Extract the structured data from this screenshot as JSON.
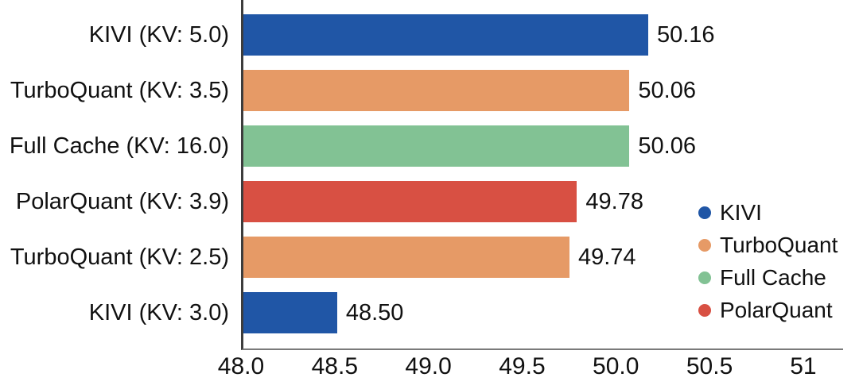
{
  "chart_data": {
    "type": "bar",
    "orientation": "horizontal",
    "title": "",
    "xlabel": "",
    "ylabel": "",
    "grid": false,
    "xlim": [
      48.0,
      51.2
    ],
    "categories": [
      "KIVI (KV: 5.0)",
      "TurboQuant (KV: 3.5)",
      "Full Cache (KV: 16.0)",
      "PolarQuant (KV: 3.9)",
      "TurboQuant (KV: 2.5)",
      "KIVI (KV: 3.0)"
    ],
    "values": [
      50.16,
      50.06,
      50.06,
      49.78,
      49.74,
      48.5
    ],
    "value_labels": [
      "50.16",
      "50.06",
      "50.06",
      "49.78",
      "49.74",
      "48.50"
    ],
    "bar_series": [
      "KIVI",
      "TurboQuant",
      "Full Cache",
      "PolarQuant",
      "TurboQuant",
      "KIVI"
    ],
    "x_ticks": [
      48.0,
      48.5,
      49.0,
      49.5,
      50.0,
      50.5,
      51.0
    ],
    "x_tick_labels": [
      "48.0",
      "48.5",
      "49.0",
      "49.5",
      "50.0",
      "50.5",
      "51"
    ],
    "legend_position": "right-middle",
    "legend": [
      {
        "label": "KIVI",
        "color": "#2056A6"
      },
      {
        "label": "TurboQuant",
        "color": "#E69A66"
      },
      {
        "label": "Full Cache",
        "color": "#82C294"
      },
      {
        "label": "PolarQuant",
        "color": "#D85043"
      }
    ]
  },
  "colors": {
    "text": "#111111",
    "axis_left": "#3d3d3d",
    "axis_bottom": "#7a7a7a",
    "background": "#ffffff"
  }
}
